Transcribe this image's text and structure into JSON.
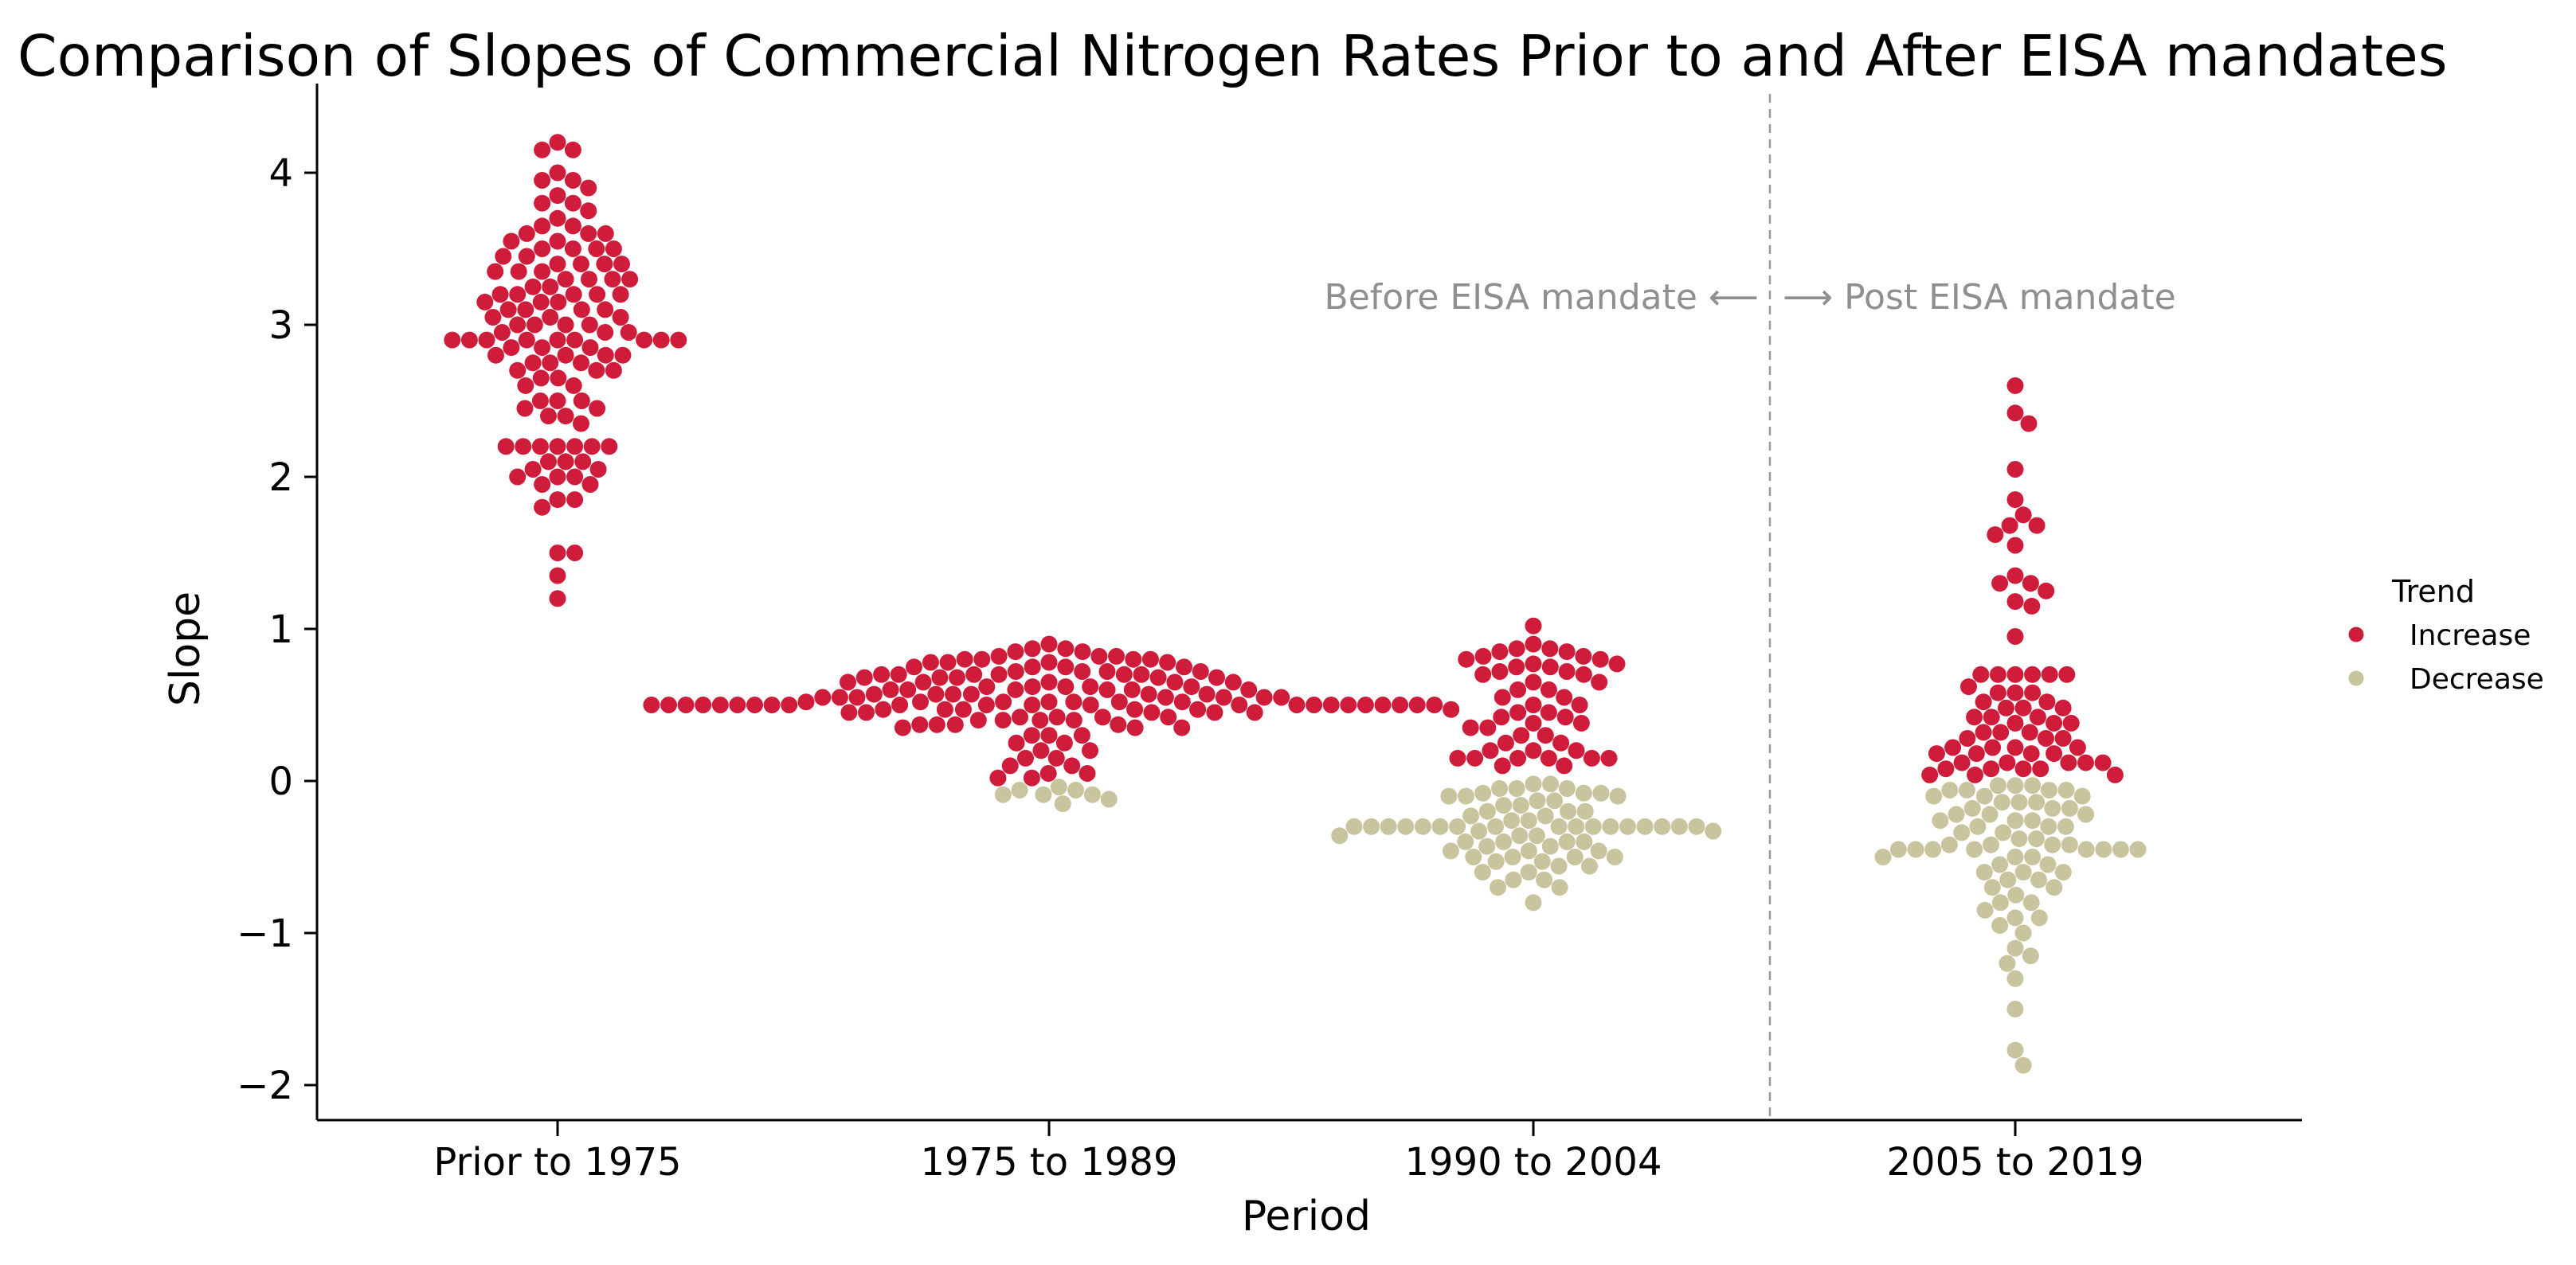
{
  "title": "Comparison of Slopes of Commercial Nitrogen Rates Prior to and After EISA mandates",
  "axes": {
    "x_label": "Period",
    "y_label": "Slope",
    "y_tick_labels": [
      "4",
      "3",
      "2",
      "1",
      "0",
      "−1",
      "−2"
    ],
    "y_tick_values": [
      4,
      3,
      2,
      1,
      0,
      -1,
      -2
    ]
  },
  "annotation": {
    "before_label": "Before EISA mandate",
    "left_arrow": "⟵",
    "right_arrow": "⟶",
    "after_label": "Post EISA mandate"
  },
  "legend": {
    "title": "Trend",
    "items": [
      {
        "label": "Increase",
        "color": "#D01C3B"
      },
      {
        "label": "Decrease",
        "color": "#C8C49E"
      }
    ]
  },
  "colors": {
    "increase": "#D01C3B",
    "decrease": "#C8C49E",
    "annotation_text": "#8F8F8F",
    "divider_line": "#999999",
    "axis": "#000000"
  },
  "chart_data": {
    "type": "scatter",
    "subtype": "beeswarm",
    "title": "Comparison of Slopes of Commercial Nitrogen Rates Prior to and After EISA mandates",
    "xlabel": "Period",
    "ylabel": "Slope",
    "categories": [
      "Prior to 1975",
      "1975 to 1989",
      "1990 to 2004",
      "2005 to 2019"
    ],
    "ylim": [
      -2.3,
      4.45
    ],
    "grid": false,
    "legend_position": "right",
    "divider_x_between_categories": [
      3,
      4
    ],
    "encoding": "values_rle_by_category = [slope_value, point_count] pairs per category, estimated from plot",
    "series": [
      {
        "name": "Increase",
        "color": "#D01C3B",
        "values_rle_by_category": [
          [
            [
              4.2,
              1
            ],
            [
              4.15,
              2
            ],
            [
              4.0,
              1
            ],
            [
              3.95,
              2
            ],
            [
              3.9,
              1
            ],
            [
              3.85,
              1
            ],
            [
              3.8,
              2
            ],
            [
              3.75,
              1
            ],
            [
              3.7,
              1
            ],
            [
              3.65,
              2
            ],
            [
              3.6,
              3
            ],
            [
              3.55,
              2
            ],
            [
              3.5,
              4
            ],
            [
              3.45,
              2
            ],
            [
              3.4,
              4
            ],
            [
              3.35,
              3
            ],
            [
              3.3,
              4
            ],
            [
              3.25,
              2
            ],
            [
              3.2,
              5
            ],
            [
              3.15,
              3
            ],
            [
              3.1,
              4
            ],
            [
              3.05,
              3
            ],
            [
              3.0,
              4
            ],
            [
              2.95,
              3
            ],
            [
              2.9,
              9
            ],
            [
              2.85,
              3
            ],
            [
              2.8,
              4
            ],
            [
              2.75,
              3
            ],
            [
              2.7,
              3
            ],
            [
              2.65,
              2
            ],
            [
              2.6,
              2
            ],
            [
              2.5,
              3
            ],
            [
              2.45,
              2
            ],
            [
              2.4,
              2
            ],
            [
              2.35,
              1
            ],
            [
              2.2,
              7
            ],
            [
              2.1,
              3
            ],
            [
              2.05,
              2
            ],
            [
              2.0,
              3
            ],
            [
              1.95,
              2
            ],
            [
              1.85,
              2
            ],
            [
              1.8,
              1
            ],
            [
              1.5,
              2
            ],
            [
              1.35,
              1
            ],
            [
              1.2,
              1
            ]
          ],
          [
            [
              0.9,
              1
            ],
            [
              0.87,
              2
            ],
            [
              0.85,
              2
            ],
            [
              0.82,
              3
            ],
            [
              0.8,
              4
            ],
            [
              0.78,
              4
            ],
            [
              0.75,
              4
            ],
            [
              0.72,
              4
            ],
            [
              0.7,
              6
            ],
            [
              0.68,
              5
            ],
            [
              0.65,
              5
            ],
            [
              0.62,
              5
            ],
            [
              0.6,
              6
            ],
            [
              0.57,
              6
            ],
            [
              0.55,
              7
            ],
            [
              0.52,
              7
            ],
            [
              0.5,
              23
            ],
            [
              0.47,
              6
            ],
            [
              0.45,
              5
            ],
            [
              0.42,
              4
            ],
            [
              0.4,
              4
            ],
            [
              0.37,
              4
            ],
            [
              0.35,
              3
            ],
            [
              0.3,
              3
            ],
            [
              0.25,
              2
            ],
            [
              0.2,
              2
            ],
            [
              0.15,
              2
            ],
            [
              0.1,
              2
            ],
            [
              0.05,
              2
            ],
            [
              0.02,
              2
            ]
          ],
          [
            [
              1.02,
              1
            ],
            [
              0.9,
              1
            ],
            [
              0.87,
              2
            ],
            [
              0.85,
              2
            ],
            [
              0.82,
              2
            ],
            [
              0.8,
              2
            ],
            [
              0.77,
              2
            ],
            [
              0.75,
              2
            ],
            [
              0.72,
              2
            ],
            [
              0.7,
              2
            ],
            [
              0.65,
              2
            ],
            [
              0.6,
              2
            ],
            [
              0.55,
              2
            ],
            [
              0.5,
              2
            ],
            [
              0.45,
              2
            ],
            [
              0.42,
              2
            ],
            [
              0.38,
              2
            ],
            [
              0.35,
              2
            ],
            [
              0.3,
              2
            ],
            [
              0.25,
              2
            ],
            [
              0.2,
              3
            ],
            [
              0.15,
              6
            ],
            [
              0.1,
              2
            ]
          ],
          [
            [
              2.6,
              1
            ],
            [
              2.42,
              1
            ],
            [
              2.35,
              1
            ],
            [
              2.05,
              1
            ],
            [
              1.85,
              1
            ],
            [
              1.75,
              1
            ],
            [
              1.68,
              2
            ],
            [
              1.62,
              1
            ],
            [
              1.55,
              1
            ],
            [
              1.35,
              1
            ],
            [
              1.3,
              2
            ],
            [
              1.25,
              1
            ],
            [
              1.18,
              1
            ],
            [
              1.15,
              1
            ],
            [
              0.95,
              1
            ],
            [
              0.7,
              6
            ],
            [
              0.62,
              1
            ],
            [
              0.58,
              3
            ],
            [
              0.52,
              2
            ],
            [
              0.48,
              3
            ],
            [
              0.42,
              3
            ],
            [
              0.38,
              3
            ],
            [
              0.32,
              3
            ],
            [
              0.28,
              3
            ],
            [
              0.22,
              4
            ],
            [
              0.18,
              4
            ],
            [
              0.12,
              5
            ],
            [
              0.08,
              4
            ],
            [
              0.04,
              3
            ]
          ]
        ]
      },
      {
        "name": "Decrease",
        "color": "#C8C49E",
        "values_rle_by_category": [
          [],
          [
            [
              -0.04,
              1
            ],
            [
              -0.06,
              2
            ],
            [
              -0.09,
              3
            ],
            [
              -0.12,
              1
            ],
            [
              -0.15,
              1
            ]
          ],
          [
            [
              -0.02,
              2
            ],
            [
              -0.05,
              3
            ],
            [
              -0.08,
              3
            ],
            [
              -0.1,
              3
            ],
            [
              -0.13,
              2
            ],
            [
              -0.16,
              2
            ],
            [
              -0.2,
              3
            ],
            [
              -0.23,
              2
            ],
            [
              -0.26,
              2
            ],
            [
              -0.3,
              17
            ],
            [
              -0.33,
              2
            ],
            [
              -0.36,
              3
            ],
            [
              -0.4,
              4
            ],
            [
              -0.43,
              2
            ],
            [
              -0.46,
              3
            ],
            [
              -0.5,
              4
            ],
            [
              -0.53,
              2
            ],
            [
              -0.56,
              2
            ],
            [
              -0.6,
              2
            ],
            [
              -0.65,
              2
            ],
            [
              -0.7,
              2
            ],
            [
              -0.8,
              1
            ]
          ],
          [
            [
              -0.03,
              3
            ],
            [
              -0.06,
              4
            ],
            [
              -0.1,
              3
            ],
            [
              -0.14,
              3
            ],
            [
              -0.18,
              3
            ],
            [
              -0.22,
              3
            ],
            [
              -0.26,
              3
            ],
            [
              -0.3,
              3
            ],
            [
              -0.34,
              2
            ],
            [
              -0.38,
              2
            ],
            [
              -0.42,
              4
            ],
            [
              -0.45,
              8
            ],
            [
              -0.5,
              3
            ],
            [
              -0.55,
              2
            ],
            [
              -0.6,
              3
            ],
            [
              -0.65,
              2
            ],
            [
              -0.7,
              2
            ],
            [
              -0.75,
              1
            ],
            [
              -0.8,
              2
            ],
            [
              -0.85,
              1
            ],
            [
              -0.9,
              2
            ],
            [
              -0.95,
              1
            ],
            [
              -1.0,
              1
            ],
            [
              -1.1,
              1
            ],
            [
              -1.15,
              1
            ],
            [
              -1.2,
              1
            ],
            [
              -1.3,
              1
            ],
            [
              -1.5,
              1
            ],
            [
              -1.77,
              1
            ],
            [
              -1.87,
              1
            ]
          ]
        ]
      }
    ]
  }
}
